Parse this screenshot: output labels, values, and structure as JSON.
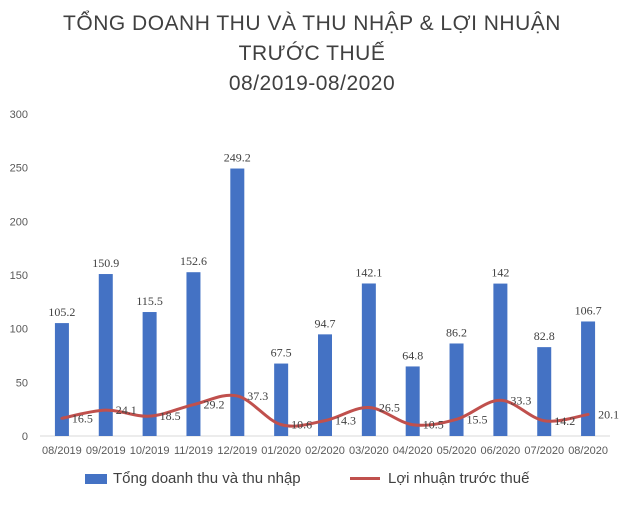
{
  "chart_data": {
    "type": "bar",
    "title_lines": [
      "TỔNG DOANH THU VÀ THU NHẬP & LỢI NHUẬN",
      "TRƯỚC THUẾ",
      "08/2019-08/2020"
    ],
    "categories": [
      "08/2019",
      "09/2019",
      "10/2019",
      "11/2019",
      "12/2019",
      "01/2020",
      "02/2020",
      "03/2020",
      "04/2020",
      "05/2020",
      "06/2020",
      "07/2020",
      "08/2020"
    ],
    "series": [
      {
        "name": "Tổng doanh thu và thu nhập",
        "type": "bar",
        "color": "#4472C4",
        "values": [
          105.2,
          150.9,
          115.5,
          152.6,
          249.2,
          67.5,
          94.7,
          142.1,
          64.8,
          86.2,
          142,
          82.8,
          106.7
        ],
        "labels": [
          "105.2",
          "150.9",
          "115.5",
          "152.6",
          "249.2",
          "67.5",
          "94.7",
          "142.1",
          "64.8",
          "86.2",
          "142",
          "82.8",
          "106.7"
        ]
      },
      {
        "name": "Lợi nhuận trước thuế",
        "type": "line",
        "color": "#C0504D",
        "values": [
          16.5,
          24.1,
          18.5,
          29.2,
          37.3,
          10.6,
          14.3,
          26.5,
          10.5,
          15.5,
          33.3,
          14.2,
          20.1
        ],
        "labels": [
          "16.5",
          "24.1",
          "18.5",
          "29.2",
          "37.3",
          "10.6",
          "14.3",
          "26.5",
          "10.5",
          "15.5",
          "33.3",
          "14.2",
          "20.1"
        ]
      }
    ],
    "ylim": [
      0,
      300
    ],
    "yticks": [
      "0",
      "50",
      "100",
      "150",
      "200",
      "250",
      "300"
    ],
    "grid": false,
    "legend_position": "bottom"
  }
}
